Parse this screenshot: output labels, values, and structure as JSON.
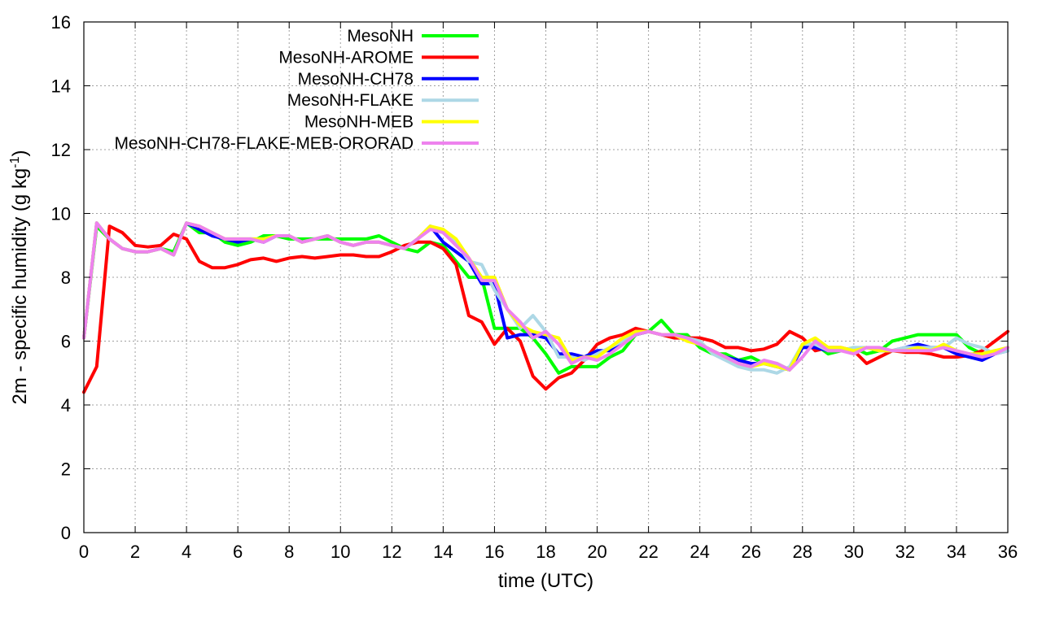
{
  "chart_data": {
    "type": "line",
    "xlabel": "time (UTC)",
    "ylabel": "2m - specific humidity (g kg",
    "ylabel_sup": "-1",
    "ylabel_close": ")",
    "xlim": [
      0,
      36
    ],
    "ylim": [
      0,
      16
    ],
    "xticks": [
      0,
      2,
      4,
      6,
      8,
      10,
      12,
      14,
      16,
      18,
      20,
      22,
      24,
      26,
      28,
      30,
      32,
      34,
      36
    ],
    "yticks": [
      0,
      2,
      4,
      6,
      8,
      10,
      12,
      14,
      16
    ],
    "grid": true,
    "legend_position": "top-left",
    "x": [
      0,
      0.5,
      1,
      1.5,
      2,
      2.5,
      3,
      3.5,
      4,
      4.5,
      5,
      5.5,
      6,
      6.5,
      7,
      7.5,
      8,
      8.5,
      9,
      9.5,
      10,
      10.5,
      11,
      11.5,
      12,
      12.5,
      13,
      13.5,
      14,
      14.5,
      15,
      15.5,
      16,
      16.5,
      17,
      17.5,
      18,
      18.5,
      19,
      19.5,
      20,
      20.5,
      21,
      21.5,
      22,
      22.5,
      23,
      23.5,
      24,
      24.5,
      25,
      25.5,
      26,
      26.5,
      27,
      27.5,
      28,
      28.5,
      29,
      29.5,
      30,
      30.5,
      31,
      31.5,
      32,
      32.5,
      33,
      33.5,
      34,
      34.5,
      35,
      35.5,
      36
    ],
    "series": [
      {
        "name": "MesoNH",
        "color": "#00ff00",
        "values": [
          6.1,
          9.6,
          9.2,
          8.9,
          8.8,
          8.8,
          8.9,
          8.8,
          9.7,
          9.4,
          9.4,
          9.1,
          9.0,
          9.1,
          9.3,
          9.3,
          9.2,
          9.2,
          9.2,
          9.2,
          9.2,
          9.2,
          9.2,
          9.3,
          9.1,
          8.9,
          8.8,
          9.1,
          9.0,
          8.5,
          8.0,
          8.0,
          6.4,
          6.4,
          6.4,
          6.1,
          5.6,
          5.0,
          5.2,
          5.2,
          5.2,
          5.5,
          5.7,
          6.2,
          6.3,
          6.65,
          6.2,
          6.2,
          5.8,
          5.6,
          5.6,
          5.4,
          5.5,
          5.3,
          5.3,
          5.1,
          5.9,
          5.9,
          5.6,
          5.7,
          5.8,
          5.6,
          5.7,
          6.0,
          6.1,
          6.2,
          6.2,
          6.2,
          6.2,
          5.8,
          5.6,
          5.7,
          5.7
        ]
      },
      {
        "name": "MesoNH-AROME",
        "color": "#ff0000",
        "values": [
          4.4,
          5.2,
          9.6,
          9.4,
          9.0,
          8.95,
          9.0,
          9.35,
          9.2,
          8.5,
          8.3,
          8.3,
          8.4,
          8.55,
          8.6,
          8.5,
          8.6,
          8.65,
          8.6,
          8.65,
          8.7,
          8.7,
          8.65,
          8.65,
          8.8,
          9.0,
          9.1,
          9.1,
          8.9,
          8.4,
          6.8,
          6.6,
          5.9,
          6.4,
          6.0,
          4.9,
          4.5,
          4.85,
          5.0,
          5.4,
          5.9,
          6.1,
          6.2,
          6.4,
          6.3,
          6.2,
          6.1,
          6.1,
          6.1,
          6.0,
          5.8,
          5.8,
          5.7,
          5.75,
          5.9,
          6.3,
          6.1,
          5.7,
          5.8,
          5.8,
          5.7,
          5.3,
          5.5,
          5.7,
          5.65,
          5.65,
          5.6,
          5.5,
          5.5,
          5.55,
          5.7,
          6.0,
          6.3
        ]
      },
      {
        "name": "MesoNH-CH78",
        "color": "#0000ff",
        "values": [
          6.1,
          9.7,
          9.2,
          8.9,
          8.8,
          8.8,
          8.9,
          8.7,
          9.7,
          9.5,
          9.3,
          9.2,
          9.1,
          9.2,
          9.1,
          9.3,
          9.3,
          9.1,
          9.2,
          9.3,
          9.1,
          9.0,
          9.1,
          9.1,
          9.0,
          8.9,
          9.2,
          9.6,
          9.1,
          8.8,
          8.5,
          7.8,
          7.8,
          6.1,
          6.2,
          6.2,
          6.1,
          5.6,
          5.6,
          5.5,
          5.7,
          5.7,
          6.0,
          6.2,
          6.3,
          6.2,
          6.2,
          6.1,
          5.9,
          5.7,
          5.5,
          5.4,
          5.3,
          5.3,
          5.2,
          5.1,
          5.8,
          5.8,
          5.7,
          5.7,
          5.7,
          5.8,
          5.7,
          5.7,
          5.8,
          5.9,
          5.8,
          5.8,
          5.6,
          5.5,
          5.4,
          5.6,
          5.7
        ]
      },
      {
        "name": "MesoNH-FLAKE",
        "color": "#add8e6",
        "values": [
          6.1,
          9.7,
          9.2,
          8.9,
          8.8,
          8.8,
          8.9,
          8.7,
          9.7,
          9.6,
          9.4,
          9.2,
          9.2,
          9.2,
          9.2,
          9.3,
          9.3,
          9.1,
          9.2,
          9.3,
          9.1,
          9.0,
          9.1,
          9.1,
          9.0,
          8.9,
          9.2,
          9.6,
          9.4,
          9.1,
          8.5,
          8.4,
          7.6,
          7.0,
          6.4,
          6.8,
          6.3,
          5.5,
          5.5,
          5.4,
          5.6,
          5.8,
          6.0,
          6.3,
          6.3,
          6.2,
          6.2,
          6.1,
          6.0,
          5.6,
          5.4,
          5.2,
          5.1,
          5.1,
          5.0,
          5.2,
          5.9,
          5.9,
          5.7,
          5.7,
          5.8,
          5.8,
          5.7,
          5.7,
          5.8,
          5.8,
          5.8,
          5.8,
          6.1,
          5.9,
          5.8,
          5.6,
          5.7
        ]
      },
      {
        "name": "MesoNH-MEB",
        "color": "#ffff00",
        "values": [
          6.1,
          9.7,
          9.2,
          8.9,
          8.8,
          8.8,
          8.9,
          8.7,
          9.7,
          9.6,
          9.4,
          9.2,
          9.2,
          9.2,
          9.2,
          9.3,
          9.3,
          9.1,
          9.2,
          9.3,
          9.1,
          9.0,
          9.1,
          9.1,
          9.0,
          8.9,
          9.2,
          9.6,
          9.5,
          9.2,
          8.6,
          8.0,
          8.0,
          7.0,
          6.5,
          6.3,
          6.2,
          6.1,
          5.4,
          5.5,
          5.5,
          5.8,
          6.1,
          6.3,
          6.3,
          6.2,
          6.2,
          6.0,
          5.9,
          5.7,
          5.5,
          5.3,
          5.2,
          5.3,
          5.2,
          5.1,
          5.9,
          6.1,
          5.8,
          5.8,
          5.7,
          5.8,
          5.7,
          5.7,
          5.7,
          5.8,
          5.7,
          5.9,
          5.7,
          5.6,
          5.6,
          5.7,
          5.8
        ]
      },
      {
        "name": "MesoNH-CH78-FLAKE-MEB-ORORAD",
        "color": "#ee82ee",
        "values": [
          6.1,
          9.7,
          9.2,
          8.9,
          8.8,
          8.8,
          8.9,
          8.7,
          9.7,
          9.6,
          9.4,
          9.2,
          9.2,
          9.2,
          9.1,
          9.3,
          9.3,
          9.1,
          9.2,
          9.3,
          9.1,
          9.0,
          9.1,
          9.1,
          9.0,
          8.9,
          9.2,
          9.5,
          9.4,
          9.0,
          8.6,
          7.9,
          7.9,
          7.0,
          6.6,
          6.1,
          6.3,
          5.9,
          5.3,
          5.5,
          5.4,
          5.6,
          5.9,
          6.2,
          6.3,
          6.2,
          6.2,
          6.1,
          5.9,
          5.7,
          5.5,
          5.3,
          5.2,
          5.4,
          5.3,
          5.1,
          5.5,
          6.0,
          5.7,
          5.7,
          5.6,
          5.8,
          5.8,
          5.7,
          5.7,
          5.7,
          5.7,
          5.8,
          5.7,
          5.6,
          5.5,
          5.6,
          5.8
        ]
      }
    ]
  }
}
